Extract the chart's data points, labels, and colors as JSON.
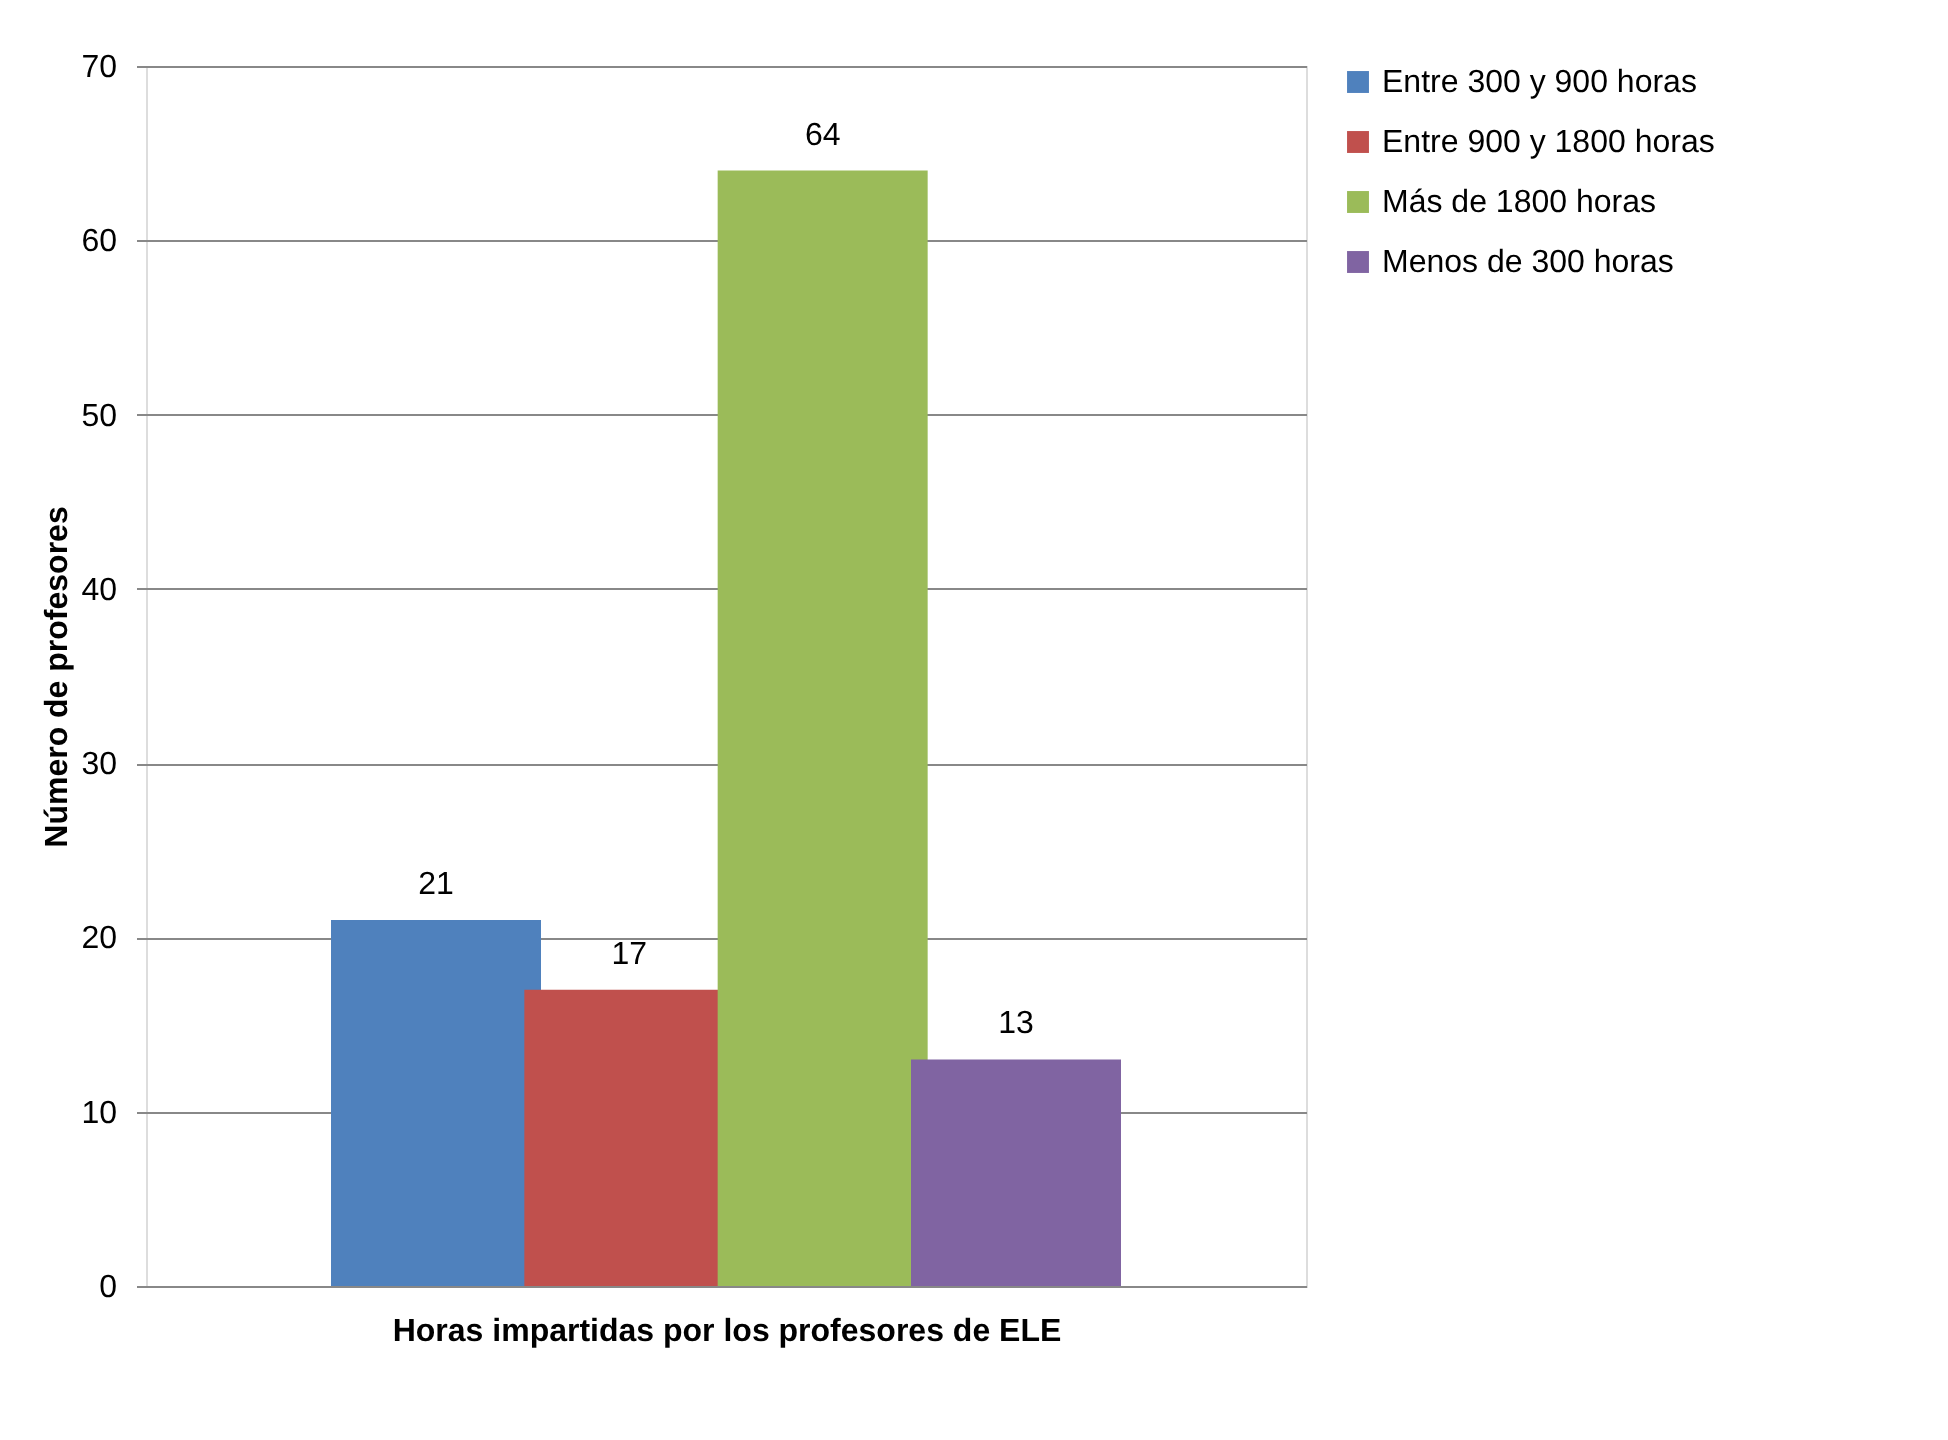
{
  "chart_data": {
    "type": "bar",
    "xlabel": "Horas impartidas por los profesores de ELE",
    "ylabel": "Número de profesores",
    "categories": [
      null
    ],
    "series": [
      {
        "name": "Entre 300 y 900 horas",
        "color": "#4f81bd",
        "values": [
          21
        ]
      },
      {
        "name": "Entre 900 y 1800 horas",
        "color": "#c0504d",
        "values": [
          17
        ]
      },
      {
        "name": "Más de 1800 horas",
        "color": "#9bbb59",
        "values": [
          64
        ]
      },
      {
        "name": "Menos de 300 horas",
        "color": "#8064a2",
        "values": [
          13
        ]
      }
    ],
    "ylim": [
      0,
      70
    ],
    "yticks": [
      0,
      10,
      20,
      30,
      40,
      50,
      60,
      70
    ],
    "grid": "y",
    "legend": "right",
    "data_labels": true
  }
}
